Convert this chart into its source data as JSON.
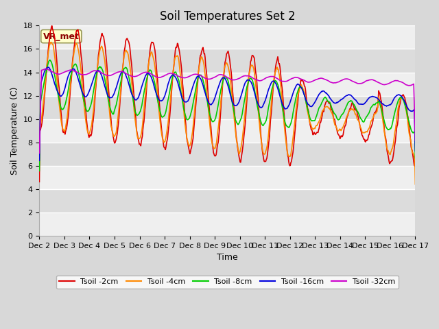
{
  "title": "Soil Temperatures Set 2",
  "xlabel": "Time",
  "ylabel": "Soil Temperature (C)",
  "ylim": [
    0,
    18
  ],
  "yticks": [
    0,
    2,
    4,
    6,
    8,
    10,
    12,
    14,
    16,
    18
  ],
  "x_labels": [
    "Dec 2",
    "Dec 3",
    "Dec 4",
    "Dec 5",
    "Dec 6",
    "Dec 7",
    "Dec 8",
    "Dec 9",
    "Dec 10",
    "Dec 11",
    "Dec 12",
    "Dec 13",
    "Dec 14",
    "Dec 15",
    "Dec 16",
    "Dec 17"
  ],
  "series_colors": {
    "Tsoil -2cm": "#dd0000",
    "Tsoil -4cm": "#ff8800",
    "Tsoil -8cm": "#00cc00",
    "Tsoil -16cm": "#0000dd",
    "Tsoil -32cm": "#cc00cc"
  },
  "annotation_text": "VR_met",
  "annotation_color": "#8b0000",
  "annotation_bg": "#ffffcc",
  "background_color": "#d8d8d8",
  "plot_bg_light": "#efefef",
  "plot_bg_dark": "#dcdcdc",
  "grid_color": "#ffffff",
  "title_fontsize": 12,
  "axis_fontsize": 8,
  "label_fontsize": 9,
  "linewidth": 1.2
}
